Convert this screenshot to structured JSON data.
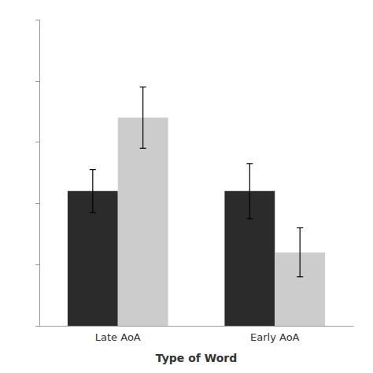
{
  "chart_data": {
    "type": "bar",
    "xlabel": "Type of Word",
    "categories": [
      "Late AoA",
      "Early AoA"
    ],
    "series": [
      {
        "color": "#2b2b2b",
        "values": [
          620,
          620
        ],
        "errors": [
          35,
          45
        ]
      },
      {
        "color": "#cccccc",
        "values": [
          740,
          520
        ],
        "errors": [
          50,
          40
        ]
      }
    ],
    "ylim": [
      400,
      900
    ],
    "yticks": [
      400,
      500,
      600,
      700,
      800,
      900
    ],
    "grid": false,
    "tick_labels": "x"
  }
}
